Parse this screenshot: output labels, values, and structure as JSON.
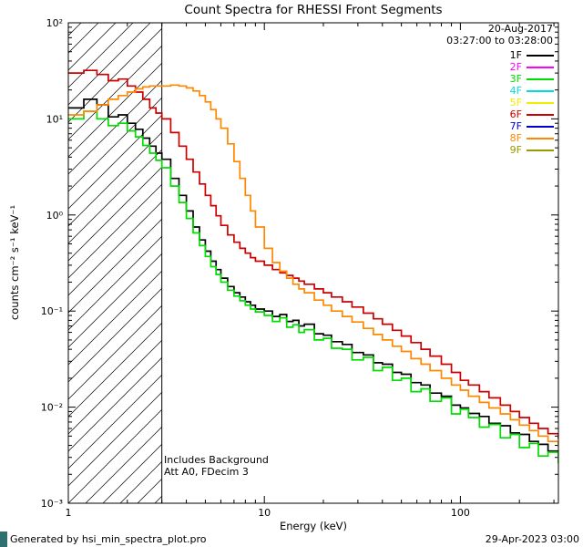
{
  "chart_data": {
    "type": "line",
    "title": "Count Spectra for RHESSI Front Segments",
    "date_label": "20-Aug-2017",
    "time_range_label": "03:27:00 to 03:28:00",
    "xlabel": "Energy (keV)",
    "ylabel": "counts cm⁻² s⁻¹ keV⁻¹",
    "x_scale": "log",
    "y_scale": "log",
    "xlim": [
      1,
      316.23
    ],
    "ylim": [
      0.001,
      100
    ],
    "grid": false,
    "legend_position": "top-right",
    "x_ticks": [
      {
        "value": 1,
        "label": "1"
      },
      {
        "value": 10,
        "label": "10"
      },
      {
        "value": 100,
        "label": "100"
      }
    ],
    "y_ticks": [
      {
        "value": 0.001,
        "label": "10⁻³"
      },
      {
        "value": 0.01,
        "label": "10⁻²"
      },
      {
        "value": 0.1,
        "label": "10⁻¹"
      },
      {
        "value": 1,
        "label": "10⁰"
      },
      {
        "value": 10,
        "label": "10¹"
      },
      {
        "value": 100,
        "label": "10²"
      }
    ],
    "hatch_region": {
      "xmin": 1,
      "xmax": 3,
      "style": "diagonal-hatch"
    },
    "annotations": [
      "Includes Background",
      "Att A0, FDecim 3"
    ],
    "footer_left": "Generated by hsi_min_spectra_plot.pro",
    "footer_right": "29-Apr-2023 03:00",
    "energies_keV": [
      1.0,
      1.2,
      1.4,
      1.6,
      1.8,
      2.0,
      2.2,
      2.4,
      2.6,
      2.8,
      3.0,
      3.33,
      3.67,
      4.0,
      4.33,
      4.67,
      5.0,
      5.33,
      5.67,
      6.0,
      6.5,
      7.0,
      7.5,
      8.0,
      8.5,
      9.0,
      10,
      11,
      12,
      13,
      14,
      15,
      16,
      18,
      20,
      22,
      25,
      28,
      32,
      36,
      40,
      45,
      50,
      56,
      63,
      70,
      80,
      90,
      100,
      110,
      125,
      140,
      160,
      180,
      200,
      225,
      250,
      280,
      316
    ],
    "series": [
      {
        "name": "1F",
        "color": "#000000",
        "visible": true,
        "values": [
          13,
          16,
          14,
          10.5,
          11,
          9,
          7.8,
          6.3,
          5.2,
          4.4,
          3.8,
          2.4,
          1.6,
          1.1,
          0.75,
          0.55,
          0.42,
          0.33,
          0.27,
          0.22,
          0.18,
          0.155,
          0.14,
          0.125,
          0.115,
          0.105,
          0.1,
          0.088,
          0.092,
          0.078,
          0.08,
          0.07,
          0.073,
          0.058,
          0.056,
          0.048,
          0.045,
          0.037,
          0.035,
          0.029,
          0.028,
          0.023,
          0.022,
          0.018,
          0.017,
          0.014,
          0.013,
          0.0105,
          0.0098,
          0.0086,
          0.008,
          0.0068,
          0.0064,
          0.0054,
          0.0052,
          0.0044,
          0.0041,
          0.0035,
          0.0033
        ]
      },
      {
        "name": "2F",
        "color": "#ff00ff",
        "visible": false,
        "values": []
      },
      {
        "name": "3F",
        "color": "#00dd00",
        "visible": true,
        "values": [
          10,
          12,
          10,
          8.5,
          9,
          7.5,
          6.5,
          5.3,
          4.4,
          3.7,
          3.1,
          2.0,
          1.35,
          0.92,
          0.65,
          0.48,
          0.37,
          0.29,
          0.24,
          0.2,
          0.165,
          0.143,
          0.128,
          0.115,
          0.105,
          0.098,
          0.09,
          0.078,
          0.085,
          0.068,
          0.072,
          0.06,
          0.064,
          0.05,
          0.052,
          0.041,
          0.04,
          0.031,
          0.033,
          0.024,
          0.026,
          0.019,
          0.02,
          0.0145,
          0.0155,
          0.0115,
          0.0125,
          0.0085,
          0.0095,
          0.0078,
          0.0062,
          0.0066,
          0.0048,
          0.0052,
          0.0038,
          0.0042,
          0.0031,
          0.0034,
          0.0026
        ]
      },
      {
        "name": "4F",
        "color": "#00dddd",
        "visible": false,
        "values": []
      },
      {
        "name": "5F",
        "color": "#eeee00",
        "visible": false,
        "values": []
      },
      {
        "name": "6F",
        "color": "#cc0000",
        "visible": true,
        "values": [
          30,
          32,
          29,
          25,
          26,
          22,
          19,
          16,
          13,
          11.5,
          10,
          7.2,
          5.2,
          3.8,
          2.8,
          2.1,
          1.6,
          1.25,
          0.98,
          0.78,
          0.62,
          0.52,
          0.45,
          0.4,
          0.36,
          0.33,
          0.3,
          0.27,
          0.25,
          0.235,
          0.22,
          0.205,
          0.19,
          0.17,
          0.155,
          0.14,
          0.125,
          0.11,
          0.095,
          0.083,
          0.073,
          0.063,
          0.055,
          0.047,
          0.04,
          0.034,
          0.028,
          0.023,
          0.019,
          0.017,
          0.0145,
          0.0125,
          0.0105,
          0.009,
          0.0078,
          0.0068,
          0.006,
          0.0053,
          0.0047
        ]
      },
      {
        "name": "7F",
        "color": "#0000cc",
        "visible": false,
        "values": []
      },
      {
        "name": "8F",
        "color": "#ff8800",
        "visible": true,
        "values": [
          11,
          12,
          14,
          16,
          17.5,
          19,
          20.5,
          21.5,
          22,
          22,
          22,
          22.5,
          22,
          21,
          19.5,
          17.5,
          15,
          12.5,
          10,
          8,
          5.5,
          3.6,
          2.4,
          1.6,
          1.1,
          0.75,
          0.45,
          0.32,
          0.26,
          0.22,
          0.19,
          0.17,
          0.155,
          0.13,
          0.115,
          0.1,
          0.088,
          0.077,
          0.066,
          0.057,
          0.05,
          0.043,
          0.038,
          0.032,
          0.028,
          0.024,
          0.02,
          0.017,
          0.015,
          0.013,
          0.0112,
          0.0098,
          0.0085,
          0.0074,
          0.0065,
          0.0057,
          0.005,
          0.0044,
          0.0039
        ]
      },
      {
        "name": "9F",
        "color": "#999900",
        "visible": false,
        "values": []
      }
    ]
  }
}
